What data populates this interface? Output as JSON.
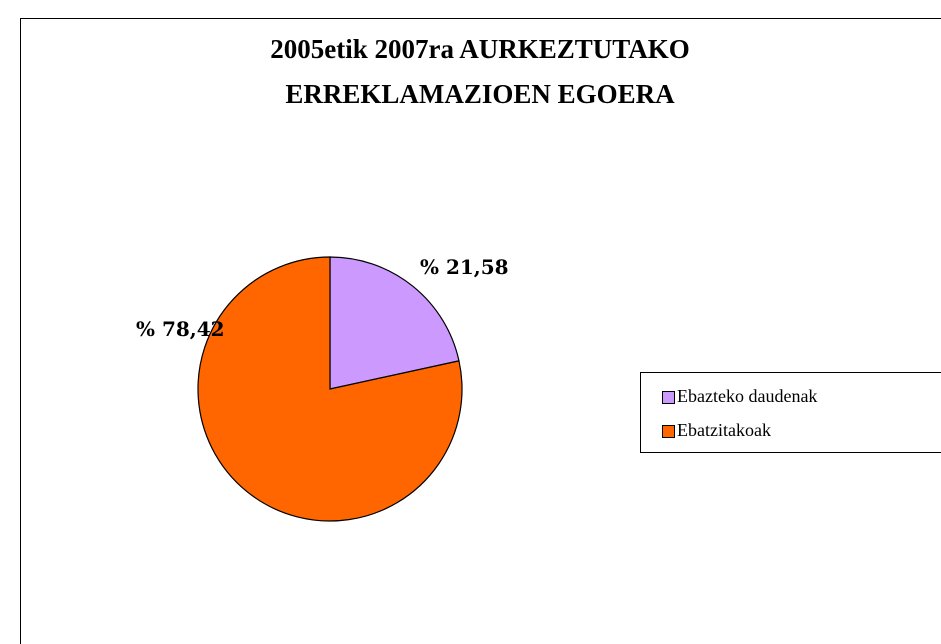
{
  "chart_data": {
    "type": "pie",
    "title": [
      "2005etik 2007ra AURKEZTUTAKO",
      "ERREKLAMAZIOEN EGOERA"
    ],
    "categories": [
      "Ebazteko daudenak",
      "Ebatzitakoak"
    ],
    "values": [
      21.58,
      78.42
    ],
    "value_labels": [
      "% 21,58",
      "% 78,42"
    ],
    "colors": [
      "#cc99ff",
      "#ff6600"
    ],
    "legend": "right"
  }
}
